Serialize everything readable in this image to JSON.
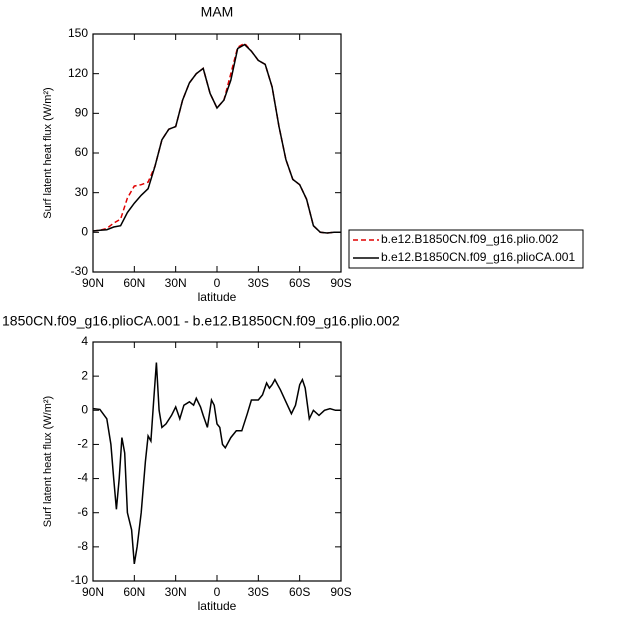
{
  "chart_data": [
    {
      "type": "line",
      "title": "MAM",
      "xlabel": "latitude",
      "ylabel": "Surf latent heat flux (W/m²)",
      "x": [
        90,
        85,
        80,
        75,
        70,
        65,
        60,
        55,
        50,
        45,
        40,
        35,
        30,
        25,
        20,
        15,
        10,
        5,
        0,
        -5,
        -10,
        -15,
        -20,
        -25,
        -30,
        -35,
        -40,
        -45,
        -50,
        -55,
        -60,
        -65,
        -70,
        -75,
        -80,
        -85,
        -90
      ],
      "series": [
        {
          "name": "b.e12.B1850CN.f09_g16.plio.002",
          "color": "#e00000",
          "linestyle": "dashed",
          "values": [
            1,
            1.5,
            3,
            7,
            10,
            26,
            35,
            36,
            38,
            50,
            70,
            78,
            80,
            100,
            113,
            120,
            124,
            105,
            94,
            100,
            120,
            140,
            143,
            137,
            130,
            127,
            110,
            80,
            55,
            40,
            36,
            25,
            5,
            0,
            -0.5,
            0,
            0
          ]
        },
        {
          "name": "b.e12.B1850CN.f09_g16.plioCA.001",
          "color": "#000000",
          "linestyle": "solid",
          "values": [
            1,
            1.5,
            2,
            4,
            5,
            15,
            22,
            28,
            33,
            50,
            70,
            78,
            80,
            100,
            113,
            120,
            124,
            105,
            94,
            100,
            115,
            139,
            142,
            137,
            130,
            127,
            110,
            80,
            55,
            40,
            36,
            25,
            5,
            0,
            -0.5,
            0,
            0
          ]
        }
      ],
      "xlim": [
        90,
        -90
      ],
      "xticks": [
        {
          "value": 90,
          "label": "90N"
        },
        {
          "value": 60,
          "label": "60N"
        },
        {
          "value": 30,
          "label": "30N"
        },
        0,
        {
          "value": -30,
          "label": "30S"
        },
        {
          "value": -60,
          "label": "60S"
        },
        {
          "value": -90,
          "label": "90S"
        }
      ],
      "ylim": [
        -30,
        150
      ],
      "yticks": [
        -30,
        0,
        30,
        60,
        90,
        120,
        150
      ],
      "legend": "right"
    },
    {
      "type": "line",
      "title": "1850CN.f09_g16.plioCA.001 - b.e12.B1850CN.f09_g16.plio.002",
      "xlabel": "latitude",
      "ylabel": "Surf latent heat flux (W/m²)",
      "x": [
        90,
        85,
        80,
        77,
        75,
        73,
        71,
        69,
        67,
        65,
        62,
        60,
        58,
        55,
        52,
        50,
        48,
        46,
        44,
        42,
        40,
        37,
        33,
        30,
        27,
        24,
        20,
        17,
        15,
        12,
        10,
        7,
        4,
        2,
        0,
        -2,
        -4,
        -6,
        -10,
        -14,
        -18,
        -22,
        -25,
        -30,
        -33,
        -36,
        -38,
        -40,
        -42,
        -44,
        -46,
        -50,
        -54,
        -57,
        -60,
        -62,
        -64,
        -67,
        -70,
        -74,
        -78,
        -82,
        -86,
        -90
      ],
      "series": [
        {
          "color": "#000000",
          "linestyle": "solid",
          "values": [
            0.1,
            0.05,
            -0.5,
            -2,
            -4,
            -5.8,
            -4,
            -1.6,
            -2.5,
            -6,
            -7,
            -9,
            -8,
            -6,
            -3,
            -1.5,
            -1.8,
            0.5,
            2.8,
            0,
            -1,
            -0.8,
            -0.3,
            0.2,
            -0.5,
            0.3,
            0.5,
            0.3,
            0.7,
            0.2,
            -0.3,
            -1,
            0.6,
            0.3,
            -0.8,
            -1,
            -2,
            -2.2,
            -1.6,
            -1.2,
            -1.2,
            -0.2,
            0.6,
            0.6,
            0.9,
            1.6,
            1.3,
            1.5,
            1.8,
            1.5,
            1.2,
            0.5,
            -0.2,
            0.3,
            1.5,
            1.8,
            1.3,
            -0.5,
            0,
            -0.3,
            0,
            0.1,
            0,
            0
          ]
        }
      ],
      "xlim": [
        90,
        -90
      ],
      "xticks": [
        {
          "value": 90,
          "label": "90N"
        },
        {
          "value": 60,
          "label": "60N"
        },
        {
          "value": 30,
          "label": "30N"
        },
        0,
        {
          "value": -30,
          "label": "30S"
        },
        {
          "value": -60,
          "label": "60S"
        },
        {
          "value": -90,
          "label": "90S"
        }
      ],
      "ylim": [
        -10,
        4
      ],
      "yticks": [
        -10,
        -8,
        -6,
        -4,
        -2,
        0,
        2,
        4
      ]
    }
  ]
}
